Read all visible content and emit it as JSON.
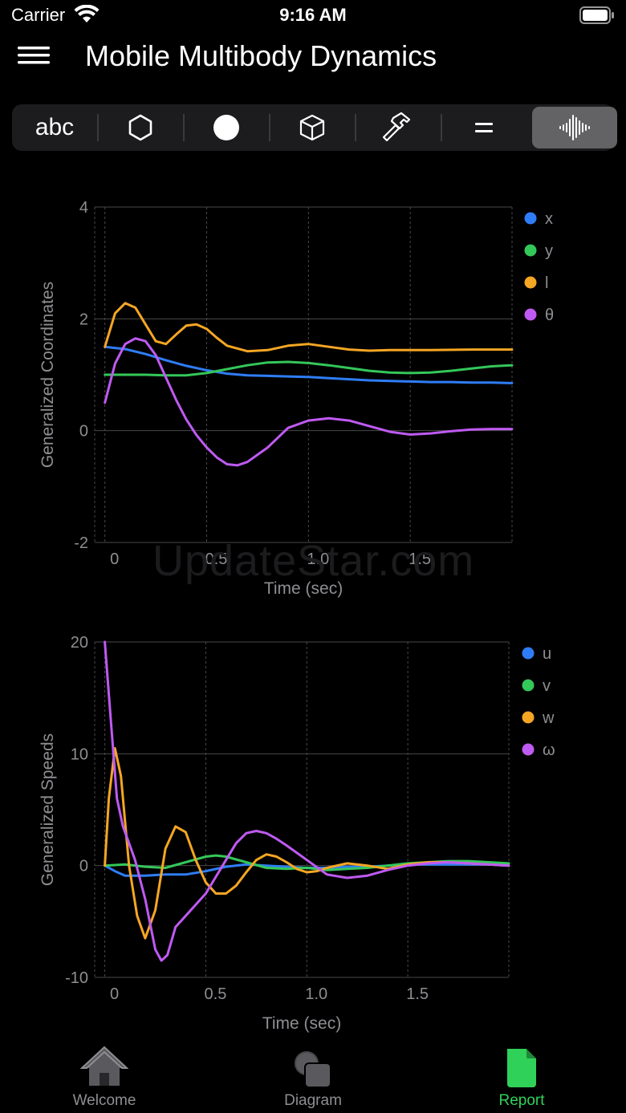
{
  "status": {
    "carrier": "Carrier",
    "time": "9:16 AM"
  },
  "nav": {
    "title": "Mobile Multibody Dynamics"
  },
  "toolbar": {
    "items": [
      {
        "label": "abc",
        "icon": "text-icon"
      },
      {
        "icon": "hexagon-icon"
      },
      {
        "icon": "circle-icon"
      },
      {
        "icon": "cube-icon"
      },
      {
        "icon": "hammer-icon"
      },
      {
        "icon": "equals-icon"
      },
      {
        "icon": "waveform-icon",
        "active": true
      }
    ]
  },
  "watermark": "UpdateStar.com",
  "colors": {
    "x": "#2f7df6",
    "y": "#34c759",
    "l": "#f5a623",
    "theta": "#bf5af2",
    "accent": "#30d158"
  },
  "chart_data": [
    {
      "type": "line",
      "xlabel": "Time (sec)",
      "ylabel": "Generalized Coordinates",
      "xlim": [
        -0.05,
        2.0
      ],
      "ylim": [
        -2,
        4
      ],
      "yticks": [
        4,
        2,
        0,
        -2
      ],
      "xticks": [
        0,
        0.5,
        1.0,
        1.5
      ],
      "xtick_labels": [
        "0",
        "0.5",
        "1.0",
        "1.5"
      ],
      "ytick_labels": [
        "4",
        "2",
        "0",
        "-2"
      ],
      "legend": "top-right",
      "series": [
        {
          "name": "x",
          "color": "#2f7df6",
          "x": [
            0,
            0.1,
            0.2,
            0.3,
            0.4,
            0.5,
            0.6,
            0.7,
            0.8,
            0.9,
            1.0,
            1.1,
            1.2,
            1.3,
            1.4,
            1.5,
            1.6,
            1.7,
            1.8,
            1.9,
            2.0
          ],
          "y": [
            1.5,
            1.46,
            1.37,
            1.26,
            1.16,
            1.08,
            1.02,
            0.99,
            0.98,
            0.97,
            0.96,
            0.94,
            0.92,
            0.9,
            0.89,
            0.88,
            0.87,
            0.87,
            0.86,
            0.86,
            0.85
          ]
        },
        {
          "name": "y",
          "color": "#34c759",
          "x": [
            0,
            0.1,
            0.2,
            0.3,
            0.4,
            0.5,
            0.6,
            0.7,
            0.8,
            0.9,
            1.0,
            1.1,
            1.2,
            1.3,
            1.4,
            1.5,
            1.6,
            1.7,
            1.8,
            1.9,
            2.0
          ],
          "y": [
            1.0,
            1.0,
            1.0,
            0.99,
            0.99,
            1.03,
            1.1,
            1.17,
            1.22,
            1.23,
            1.21,
            1.17,
            1.12,
            1.07,
            1.04,
            1.03,
            1.04,
            1.07,
            1.11,
            1.15,
            1.17
          ]
        },
        {
          "name": "l",
          "color": "#f5a623",
          "x": [
            0,
            0.05,
            0.1,
            0.15,
            0.2,
            0.25,
            0.3,
            0.35,
            0.4,
            0.45,
            0.5,
            0.55,
            0.6,
            0.7,
            0.8,
            0.9,
            1.0,
            1.1,
            1.2,
            1.3,
            1.4,
            1.6,
            1.8,
            2.0
          ],
          "y": [
            1.5,
            2.1,
            2.28,
            2.2,
            1.9,
            1.6,
            1.55,
            1.72,
            1.88,
            1.9,
            1.82,
            1.66,
            1.52,
            1.42,
            1.44,
            1.52,
            1.55,
            1.5,
            1.45,
            1.43,
            1.44,
            1.44,
            1.45,
            1.45
          ]
        },
        {
          "name": "θ",
          "color": "#bf5af2",
          "x": [
            0,
            0.05,
            0.1,
            0.15,
            0.2,
            0.25,
            0.3,
            0.35,
            0.4,
            0.45,
            0.5,
            0.55,
            0.6,
            0.65,
            0.7,
            0.8,
            0.9,
            1.0,
            1.1,
            1.2,
            1.3,
            1.4,
            1.5,
            1.6,
            1.7,
            1.8,
            1.9,
            2.0
          ],
          "y": [
            0.5,
            1.2,
            1.55,
            1.65,
            1.6,
            1.35,
            0.95,
            0.55,
            0.2,
            -0.08,
            -0.3,
            -0.48,
            -0.6,
            -0.62,
            -0.56,
            -0.3,
            0.05,
            0.18,
            0.22,
            0.18,
            0.08,
            -0.02,
            -0.07,
            -0.05,
            -0.01,
            0.02,
            0.03,
            0.03
          ]
        }
      ]
    },
    {
      "type": "line",
      "xlabel": "Time (sec)",
      "ylabel": "Generalized Speeds",
      "xlim": [
        -0.05,
        2.0
      ],
      "ylim": [
        -10,
        20
      ],
      "yticks": [
        20,
        10,
        0,
        -10
      ],
      "xticks": [
        0,
        0.5,
        1.0,
        1.5
      ],
      "xtick_labels": [
        "0",
        "0.5",
        "1.0",
        "1.5"
      ],
      "ytick_labels": [
        "20",
        "10",
        "0",
        "-10"
      ],
      "legend": "top-right",
      "series": [
        {
          "name": "u",
          "color": "#2f7df6",
          "x": [
            0,
            0.05,
            0.1,
            0.2,
            0.3,
            0.4,
            0.5,
            0.6,
            0.7,
            0.8,
            0.9,
            1.0,
            1.1,
            1.2,
            1.3,
            1.4,
            1.5,
            1.6,
            1.7,
            1.8,
            1.9,
            2.0
          ],
          "y": [
            0,
            -0.5,
            -0.9,
            -0.9,
            -0.8,
            -0.8,
            -0.5,
            -0.1,
            0.1,
            0.0,
            -0.1,
            -0.2,
            -0.2,
            -0.1,
            -0.1,
            0.0,
            0.1,
            0.1,
            0.1,
            0.1,
            0.1,
            0.0
          ]
        },
        {
          "name": "v",
          "color": "#34c759",
          "x": [
            0,
            0.1,
            0.2,
            0.3,
            0.4,
            0.5,
            0.55,
            0.6,
            0.7,
            0.8,
            0.9,
            1.0,
            1.1,
            1.2,
            1.3,
            1.4,
            1.5,
            1.6,
            1.7,
            1.8,
            1.9,
            2.0
          ],
          "y": [
            0,
            0.1,
            -0.1,
            -0.2,
            0.3,
            0.8,
            0.9,
            0.8,
            0.3,
            -0.2,
            -0.3,
            -0.2,
            -0.4,
            -0.3,
            -0.2,
            0.0,
            0.2,
            0.3,
            0.4,
            0.4,
            0.3,
            0.2
          ]
        },
        {
          "name": "w",
          "color": "#f5a623",
          "x": [
            0,
            0.02,
            0.05,
            0.08,
            0.12,
            0.16,
            0.2,
            0.25,
            0.3,
            0.35,
            0.4,
            0.45,
            0.5,
            0.55,
            0.6,
            0.65,
            0.7,
            0.75,
            0.8,
            0.85,
            0.9,
            0.95,
            1.0,
            1.05,
            1.1,
            1.2,
            1.3,
            1.4,
            1.5,
            1.6,
            1.7,
            1.8,
            1.9,
            2.0
          ],
          "y": [
            0,
            6,
            10.5,
            8,
            0,
            -4.5,
            -6.5,
            -4,
            1.5,
            3.5,
            3.0,
            0.5,
            -1.5,
            -2.5,
            -2.5,
            -1.8,
            -0.6,
            0.5,
            1.0,
            0.8,
            0.3,
            -0.3,
            -0.6,
            -0.5,
            -0.2,
            0.2,
            0.0,
            -0.3,
            0.1,
            0.3,
            0.3,
            0.2,
            0.1,
            0.0
          ]
        },
        {
          "name": "ω",
          "color": "#bf5af2",
          "x": [
            0,
            0.03,
            0.06,
            0.09,
            0.12,
            0.15,
            0.2,
            0.25,
            0.28,
            0.31,
            0.35,
            0.4,
            0.45,
            0.5,
            0.55,
            0.6,
            0.65,
            0.7,
            0.75,
            0.8,
            0.85,
            0.9,
            1.0,
            1.1,
            1.2,
            1.3,
            1.4,
            1.5,
            1.6,
            1.7,
            1.8,
            1.9,
            2.0
          ],
          "y": [
            20,
            13,
            6,
            3.5,
            2,
            0.5,
            -3,
            -7.5,
            -8.5,
            -8,
            -5.5,
            -4.5,
            -3.5,
            -2.5,
            -1.0,
            0.5,
            2.0,
            2.9,
            3.1,
            2.9,
            2.4,
            1.8,
            0.5,
            -0.8,
            -1.1,
            -0.9,
            -0.4,
            0.0,
            0.2,
            0.3,
            0.2,
            0.1,
            0.0
          ]
        }
      ]
    }
  ],
  "tabs": [
    {
      "label": "Welcome",
      "icon": "house-icon"
    },
    {
      "label": "Diagram",
      "icon": "diagram-icon"
    },
    {
      "label": "Report",
      "icon": "report-icon",
      "active": true
    }
  ]
}
